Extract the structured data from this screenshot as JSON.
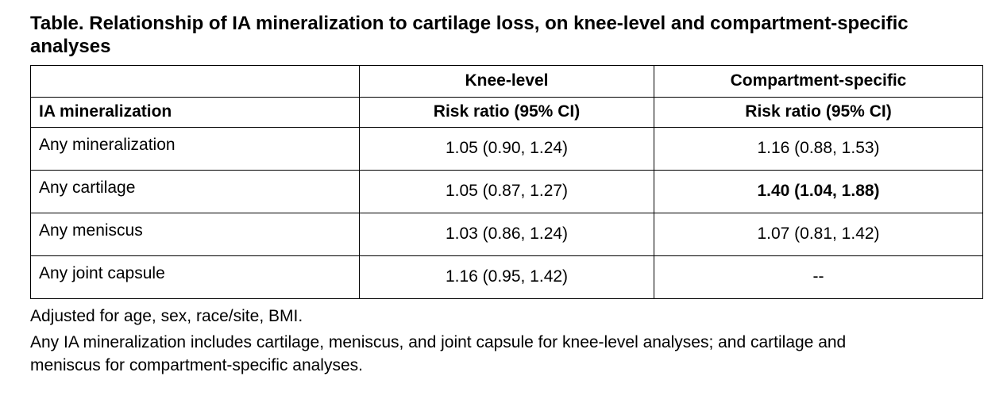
{
  "title": "Table. Relationship of IA mineralization to cartilage loss, on knee-level and compartment-specific analyses",
  "table": {
    "header_row1": [
      "",
      "Knee-level",
      "Compartment-specific"
    ],
    "header_row2": [
      "IA mineralization",
      "Risk ratio (95% CI)",
      "Risk ratio (95% CI)"
    ],
    "rows": [
      {
        "label": "Any mineralization",
        "knee_level": "1.05 (0.90, 1.24)",
        "compartment": "1.16 (0.88, 1.53)"
      },
      {
        "label": "Any cartilage",
        "knee_level": "1.05 (0.87, 1.27)",
        "compartment": "1.40 (1.04, 1.88)"
      },
      {
        "label": "Any meniscus",
        "knee_level": "1.03 (0.86, 1.24)",
        "compartment": "1.07 (0.81, 1.42)"
      },
      {
        "label": "Any joint capsule",
        "knee_level": "1.16 (0.95, 1.42)",
        "compartment": "--"
      }
    ]
  },
  "notes": [
    "Adjusted for age, sex, race/site, BMI.",
    "Any IA mineralization includes cartilage, meniscus, and joint capsule for knee-level analyses; and cartilage and meniscus for compartment-specific analyses."
  ]
}
